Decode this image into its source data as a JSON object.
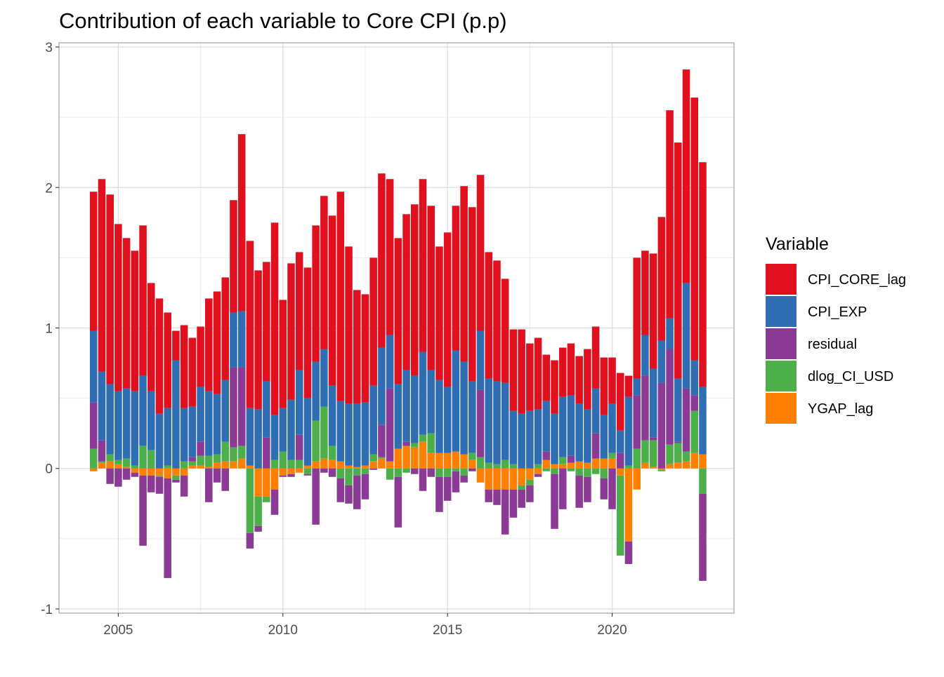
{
  "chart_data": {
    "type": "bar",
    "stacked": true,
    "title": "Contribution of each variable to Core CPI (p.p)",
    "xlabel": "",
    "ylabel": "",
    "xlim": [
      2003.2,
      2023.7
    ],
    "ylim": [
      -1.03,
      3.03
    ],
    "x_ticks": [
      2005,
      2010,
      2015,
      2020
    ],
    "x_tick_labels": [
      "2005",
      "2010",
      "2015",
      "2020"
    ],
    "y_ticks": [
      -1,
      0,
      1,
      2,
      3
    ],
    "y_tick_labels": [
      "-1",
      "0",
      "1",
      "2",
      "3"
    ],
    "grid": true,
    "legend": {
      "title": "Variable",
      "position": "right"
    },
    "x": [
      2004.25,
      2004.5,
      2004.75,
      2005.0,
      2005.25,
      2005.5,
      2005.75,
      2006.0,
      2006.25,
      2006.5,
      2006.75,
      2007.0,
      2007.25,
      2007.5,
      2007.75,
      2008.0,
      2008.25,
      2008.5,
      2008.75,
      2009.0,
      2009.25,
      2009.5,
      2009.75,
      2010.0,
      2010.25,
      2010.5,
      2010.75,
      2011.0,
      2011.25,
      2011.5,
      2011.75,
      2012.0,
      2012.25,
      2012.5,
      2012.75,
      2013.0,
      2013.25,
      2013.5,
      2013.75,
      2014.0,
      2014.25,
      2014.5,
      2014.75,
      2015.0,
      2015.25,
      2015.5,
      2015.75,
      2016.0,
      2016.25,
      2016.5,
      2016.75,
      2017.0,
      2017.25,
      2017.5,
      2017.75,
      2018.0,
      2018.25,
      2018.5,
      2018.75,
      2019.0,
      2019.25,
      2019.5,
      2019.75,
      2020.0,
      2020.25,
      2020.5,
      2020.75,
      2021.0,
      2021.25,
      2021.5,
      2021.75,
      2022.0,
      2022.25,
      2022.5,
      2022.75
    ],
    "series": [
      {
        "name": "YGAP_lag",
        "color": "#FF7F00",
        "values": [
          -0.02,
          0.04,
          0.05,
          0.03,
          0.01,
          -0.03,
          -0.05,
          -0.05,
          -0.05,
          -0.07,
          -0.05,
          -0.05,
          0.02,
          0.02,
          0.01,
          0.04,
          0.05,
          0.05,
          0.07,
          0.02,
          -0.2,
          -0.2,
          -0.15,
          -0.05,
          -0.04,
          -0.03,
          0.02,
          0.05,
          0.07,
          0.06,
          0.05,
          0.02,
          0.01,
          0.02,
          0.05,
          0.07,
          0.05,
          0.14,
          0.16,
          0.15,
          0.19,
          0.11,
          0.11,
          0.11,
          0.12,
          0.1,
          0.06,
          -0.1,
          -0.15,
          -0.15,
          -0.15,
          -0.15,
          -0.12,
          -0.08,
          -0.04,
          0.06,
          0.03,
          0.03,
          0.04,
          0.05,
          0.04,
          0.07,
          0.07,
          0.07,
          -0.05,
          -0.52,
          -0.15,
          0.04,
          0.01,
          -0.01,
          0.03,
          0.04,
          0.05,
          0.11,
          0.1
        ]
      },
      {
        "name": "dlog_CI_USD",
        "color": "#4DAF4A",
        "values": [
          0.14,
          0.01,
          0.05,
          0.03,
          0.06,
          0.02,
          0.16,
          0.13,
          -0.01,
          0.02,
          -0.03,
          0.05,
          0.03,
          0.07,
          0.08,
          0.06,
          0.14,
          0.1,
          0.09,
          -0.46,
          -0.21,
          -0.04,
          0.06,
          0.12,
          0.06,
          0.06,
          -0.04,
          0.29,
          0.37,
          0.1,
          -0.07,
          -0.12,
          -0.05,
          -0.04,
          0.05,
          0.01,
          -0.08,
          -0.06,
          -0.03,
          0.03,
          0.05,
          0.14,
          -0.06,
          -0.06,
          -0.02,
          -0.05,
          0.05,
          0.08,
          0.04,
          0.03,
          0.06,
          0.03,
          -0.03,
          -0.04,
          0.03,
          -0.02,
          -0.04,
          0.05,
          -0.02,
          -0.05,
          -0.06,
          -0.04,
          -0.07,
          0.04,
          -0.57,
          0.02,
          0.14,
          0.16,
          0.19,
          -0.01,
          0.14,
          0.14,
          0.07,
          0.3,
          -0.18
        ]
      },
      {
        "name": "residual",
        "color": "#8B3A96",
        "values": [
          0.33,
          0.15,
          -0.11,
          -0.13,
          -0.08,
          -0.03,
          -0.5,
          -0.12,
          -0.12,
          -0.71,
          -0.02,
          -0.15,
          0.03,
          0.1,
          -0.24,
          -0.1,
          -0.16,
          0.57,
          0.56,
          -0.11,
          -0.04,
          0.22,
          -0.18,
          -0.01,
          -0.02,
          0.18,
          -0.01,
          -0.4,
          -0.03,
          -0.06,
          -0.17,
          -0.13,
          -0.24,
          -0.18,
          -0.01,
          0.23,
          0.52,
          -0.36,
          0.03,
          -0.04,
          -0.16,
          -0.06,
          -0.25,
          -0.17,
          -0.15,
          -0.05,
          -0.02,
          0.48,
          -0.09,
          -0.11,
          -0.32,
          -0.2,
          -0.13,
          -0.12,
          -0.02,
          0.06,
          -0.39,
          -0.29,
          0.05,
          -0.23,
          -0.18,
          0.18,
          -0.15,
          -0.29,
          0.11,
          -0.16,
          0.38,
          0.46,
          0.02,
          0.61,
          0.68,
          0.01,
          0.45,
          0.11,
          -0.62
        ]
      },
      {
        "name": "CPI_EXP",
        "color": "#2F6EB2",
        "values": [
          0.51,
          0.49,
          0.5,
          0.49,
          0.5,
          0.53,
          0.5,
          0.42,
          0.39,
          0.41,
          0.77,
          0.38,
          0.36,
          0.39,
          0.46,
          0.43,
          0.44,
          0.39,
          0.4,
          0.41,
          0.42,
          0.4,
          0.32,
          0.31,
          0.43,
          0.46,
          0.48,
          0.42,
          0.41,
          0.43,
          0.43,
          0.44,
          0.45,
          0.45,
          0.49,
          0.55,
          0.38,
          0.46,
          0.51,
          0.48,
          0.59,
          0.45,
          0.52,
          0.47,
          0.72,
          0.66,
          0.51,
          0.42,
          0.6,
          0.59,
          0.55,
          0.38,
          0.39,
          0.41,
          0.39,
          0.36,
          0.36,
          0.43,
          0.43,
          0.41,
          0.38,
          0.32,
          0.31,
          0.35,
          0.16,
          0.49,
          0.12,
          0.29,
          0.49,
          0.3,
          0.22,
          0.45,
          0.75,
          0.25,
          0.48
        ]
      },
      {
        "name": "CPI_CORE_lag",
        "color": "#E0101E",
        "values": [
          0.99,
          1.37,
          1.35,
          1.19,
          1.07,
          1.0,
          1.07,
          0.77,
          0.82,
          0.68,
          0.21,
          0.59,
          0.49,
          0.43,
          0.66,
          0.73,
          0.73,
          0.8,
          1.26,
          1.19,
          0.99,
          0.85,
          1.37,
          0.77,
          0.97,
          0.84,
          0.93,
          0.97,
          1.09,
          1.21,
          1.49,
          1.12,
          0.81,
          0.77,
          0.91,
          1.24,
          1.11,
          1.04,
          1.11,
          1.22,
          1.23,
          1.17,
          0.95,
          1.1,
          1.03,
          1.25,
          1.24,
          1.11,
          0.9,
          0.86,
          0.74,
          0.58,
          0.6,
          0.48,
          0.51,
          0.33,
          0.38,
          0.35,
          0.37,
          0.34,
          0.43,
          0.44,
          0.41,
          0.33,
          0.41,
          0.15,
          0.86,
          0.6,
          0.82,
          0.88,
          1.48,
          1.68,
          1.52,
          1.87,
          1.6
        ]
      }
    ]
  }
}
